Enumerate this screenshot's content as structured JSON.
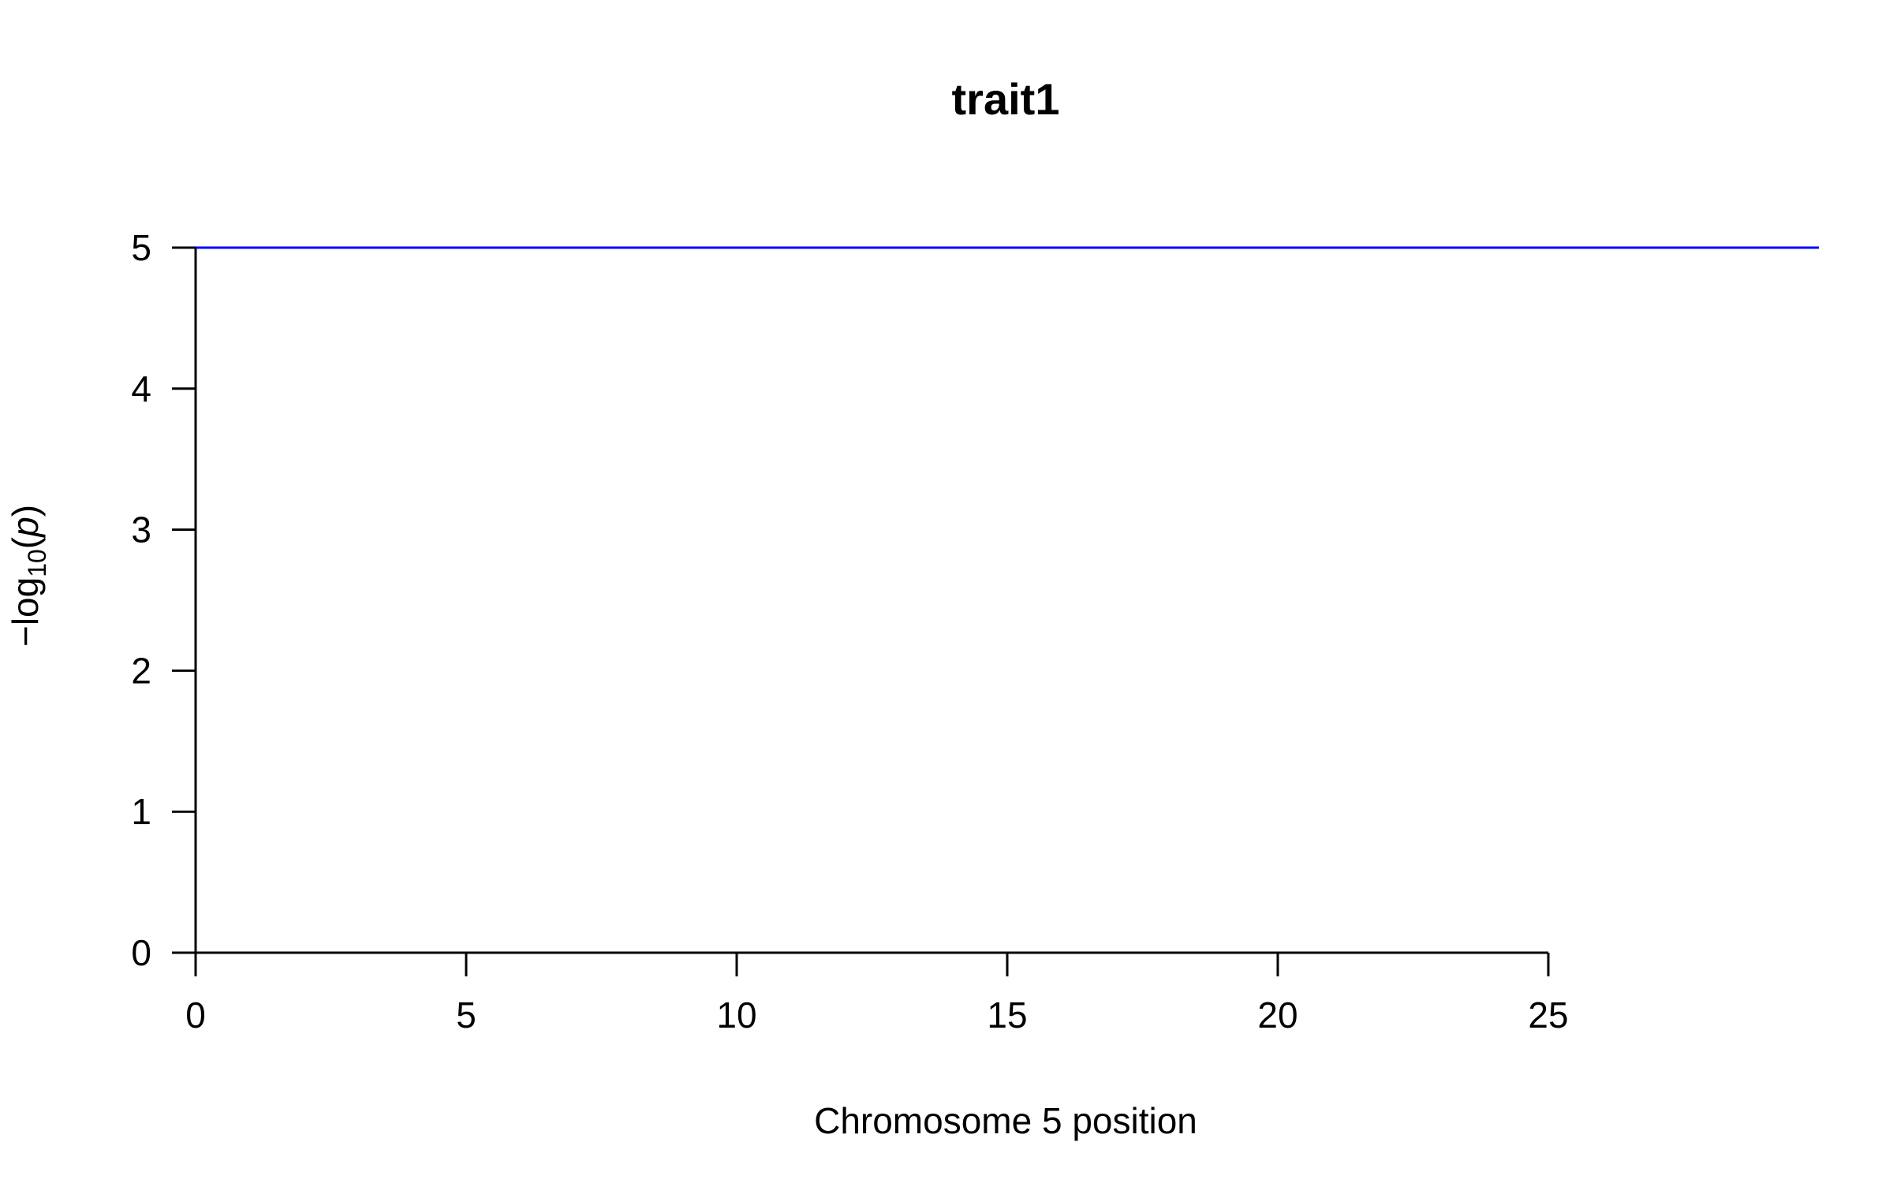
{
  "chart_data": {
    "type": "line",
    "title": "trait1",
    "xlabel": "Chromosome 5 position",
    "ylabel": {
      "prefix": "−log",
      "subscript": "10",
      "open": "(",
      "variable": "p",
      "close": ")"
    },
    "xlim": [
      0,
      30
    ],
    "ylim": [
      0,
      5
    ],
    "x_ticks": [
      0,
      5,
      10,
      15,
      20,
      25
    ],
    "y_ticks": [
      0,
      1,
      2,
      3,
      4,
      5
    ],
    "grid": false,
    "legend": "none",
    "series": [
      {
        "color": "#0000ff",
        "x": [
          0,
          30
        ],
        "y": [
          5,
          5
        ]
      }
    ]
  }
}
